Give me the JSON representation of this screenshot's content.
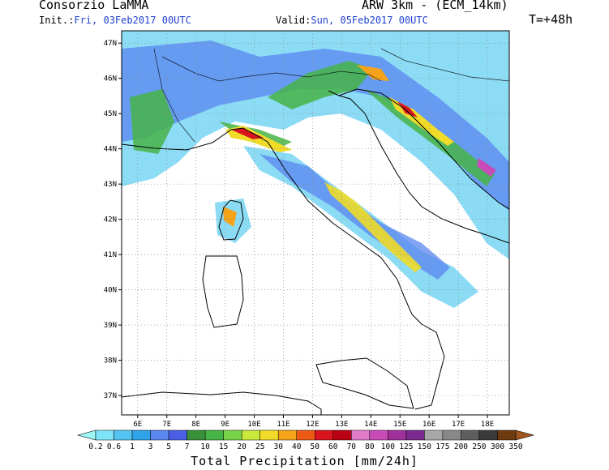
{
  "header": {
    "title": "Consorzio LaMMA",
    "model": "ARW 3km - (ECM_14km)",
    "init_label": "Init.:",
    "init_value": "Fri, 03Feb2017 00UTC",
    "valid_label": "Valid:",
    "valid_value": "Sun, 05Feb2017 00UTC",
    "lead_time": "T=+48h"
  },
  "map": {
    "lat_labels": [
      "47N",
      "46N",
      "45N",
      "44N",
      "43N",
      "42N",
      "41N",
      "40N",
      "39N",
      "38N",
      "37N"
    ],
    "lon_labels": [
      "6E",
      "7E",
      "8E",
      "9E",
      "10E",
      "11E",
      "12E",
      "13E",
      "14E",
      "15E",
      "16E",
      "17E",
      "18E"
    ],
    "extent": {
      "lon_min": 5.45,
      "lon_max": 18.75,
      "lat_min": 36.45,
      "lat_max": 47.35
    },
    "gridlines": "dotted",
    "variable": "Total Precipitation"
  },
  "colorbar": {
    "title": "Total Precipitation [mm/24h]",
    "labels": [
      "0.2",
      "0.6",
      "1",
      "3",
      "5",
      "7",
      "10",
      "15",
      "20",
      "25",
      "30",
      "40",
      "50",
      "60",
      "70",
      "80",
      "100",
      "125",
      "150",
      "175",
      "200",
      "250",
      "300",
      "350"
    ],
    "colors": [
      "#9ff6f6",
      "#7ee3f7",
      "#55c4f2",
      "#2ea3e8",
      "#5a86f0",
      "#4b5fe6",
      "#3a8f3a",
      "#46b446",
      "#78d248",
      "#c8e83c",
      "#f0dc28",
      "#f5a318",
      "#ee5a14",
      "#d9141e",
      "#b80012",
      "#e07cc8",
      "#c84bb8",
      "#a0309a",
      "#7a2a8c",
      "#a8a8a8",
      "#888888",
      "#5e5e5e",
      "#3a3a3a",
      "#6e3a10",
      "#a0561e"
    ]
  }
}
